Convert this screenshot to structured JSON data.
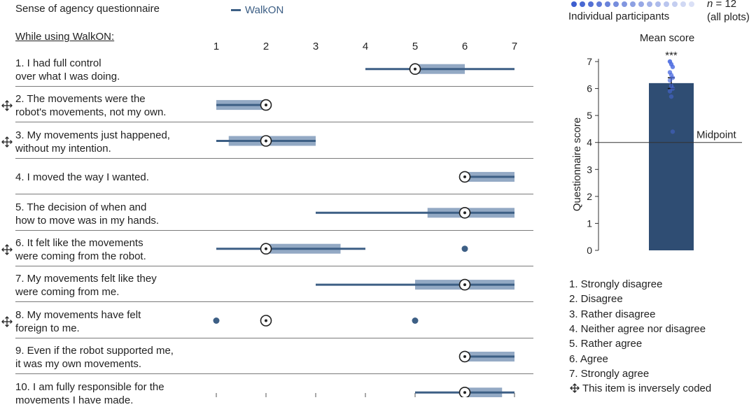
{
  "header": {
    "title": "Sense of agency questionnaire",
    "legend_walkon": "WalkON",
    "section_title": "While using WalkON:",
    "participants_label": "Individual participants",
    "n_label_italic": "n",
    "n_label_rest": " = 12",
    "n_label_note": "(all plots)"
  },
  "colors": {
    "line": "#3d5f85",
    "box": "#93a9c4",
    "bar": "#2f4d73",
    "dots": "#3355cc",
    "separator": "#7a7a7a",
    "text": "#222222"
  },
  "questions": [
    {
      "line1": "1. I had full control",
      "line2": "over what I was doing.",
      "inverse": false
    },
    {
      "line1": "2. The movements were the",
      "line2": "robot's movements, not my own.",
      "inverse": true
    },
    {
      "line1": "3. My movements just happened,",
      "line2": "without my intention.",
      "inverse": true
    },
    {
      "line1": "4. I moved the way I wanted.",
      "line2": "",
      "inverse": false
    },
    {
      "line1": "5. The decision of when and",
      "line2": "how to move was in my hands.",
      "inverse": false
    },
    {
      "line1": "6. It felt like the movements",
      "line2": "were coming from the robot.",
      "inverse": true
    },
    {
      "line1": "7. My movements felt like they",
      "line2": "were coming from me.",
      "inverse": false
    },
    {
      "line1": "8. My movements have felt",
      "line2": "foreign to me.",
      "inverse": true
    },
    {
      "line1": "9. Even if the robot supported me,",
      "line2": "it was my own movements.",
      "inverse": false
    },
    {
      "line1": "10. I am fully responsible for the",
      "line2": "movements I have made.",
      "inverse": false
    }
  ],
  "scale_legend": {
    "items": [
      "1. Strongly disagree",
      "2. Disagree",
      "3. Rather disagree",
      "4. Neither agree nor disagree",
      "5. Rather agree",
      "6. Agree",
      "7. Strongly agree"
    ],
    "inverse_note": "This item is inversely coded"
  },
  "chart_data": [
    {
      "type": "box",
      "xlim": [
        1,
        7
      ],
      "xticks": [
        "1",
        "2",
        "3",
        "4",
        "5",
        "6",
        "7"
      ],
      "boxes": [
        {
          "item": 1,
          "whisker_low": 4,
          "q1": 5,
          "median": 5,
          "q3": 6,
          "whisker_high": 7,
          "outliers": []
        },
        {
          "item": 2,
          "whisker_low": 1,
          "q1": 1,
          "median": 2,
          "q3": 2,
          "whisker_high": 2,
          "outliers": []
        },
        {
          "item": 3,
          "whisker_low": 1,
          "q1": 1.25,
          "median": 2,
          "q3": 3,
          "whisker_high": 3,
          "outliers": []
        },
        {
          "item": 4,
          "whisker_low": 6,
          "q1": 6,
          "median": 6,
          "q3": 7,
          "whisker_high": 7,
          "outliers": []
        },
        {
          "item": 5,
          "whisker_low": 3,
          "q1": 5.25,
          "median": 6,
          "q3": 7,
          "whisker_high": 7,
          "outliers": []
        },
        {
          "item": 6,
          "whisker_low": 1,
          "q1": 2,
          "median": 2,
          "q3": 3.5,
          "whisker_high": 4,
          "outliers": [
            6
          ]
        },
        {
          "item": 7,
          "whisker_low": 3,
          "q1": 5,
          "median": 6,
          "q3": 7,
          "whisker_high": 7,
          "outliers": []
        },
        {
          "item": 8,
          "whisker_low": 2,
          "q1": 2,
          "median": 2,
          "q3": 2,
          "whisker_high": 2,
          "outliers": [
            1,
            5
          ]
        },
        {
          "item": 9,
          "whisker_low": 6,
          "q1": 6,
          "median": 6,
          "q3": 7,
          "whisker_high": 7,
          "outliers": []
        },
        {
          "item": 10,
          "whisker_low": 5,
          "q1": 6,
          "median": 6,
          "q3": 6.75,
          "whisker_high": 7,
          "outliers": []
        }
      ]
    },
    {
      "type": "bar",
      "title": "Mean score",
      "ylabel": "Questionnaire score",
      "ylim": [
        0,
        7
      ],
      "yticks": [
        "0",
        "1",
        "2",
        "3",
        "4",
        "5",
        "6",
        "7"
      ],
      "categories": [
        "WalkON"
      ],
      "values": [
        6.2
      ],
      "error": 0.2,
      "significance": "***",
      "reference_line": {
        "value": 4,
        "label": "Midpoint"
      },
      "participant_scores": [
        7.0,
        6.9,
        6.8,
        6.6,
        6.5,
        6.4,
        6.3,
        6.1,
        6.0,
        5.9,
        5.7,
        4.4
      ]
    }
  ]
}
